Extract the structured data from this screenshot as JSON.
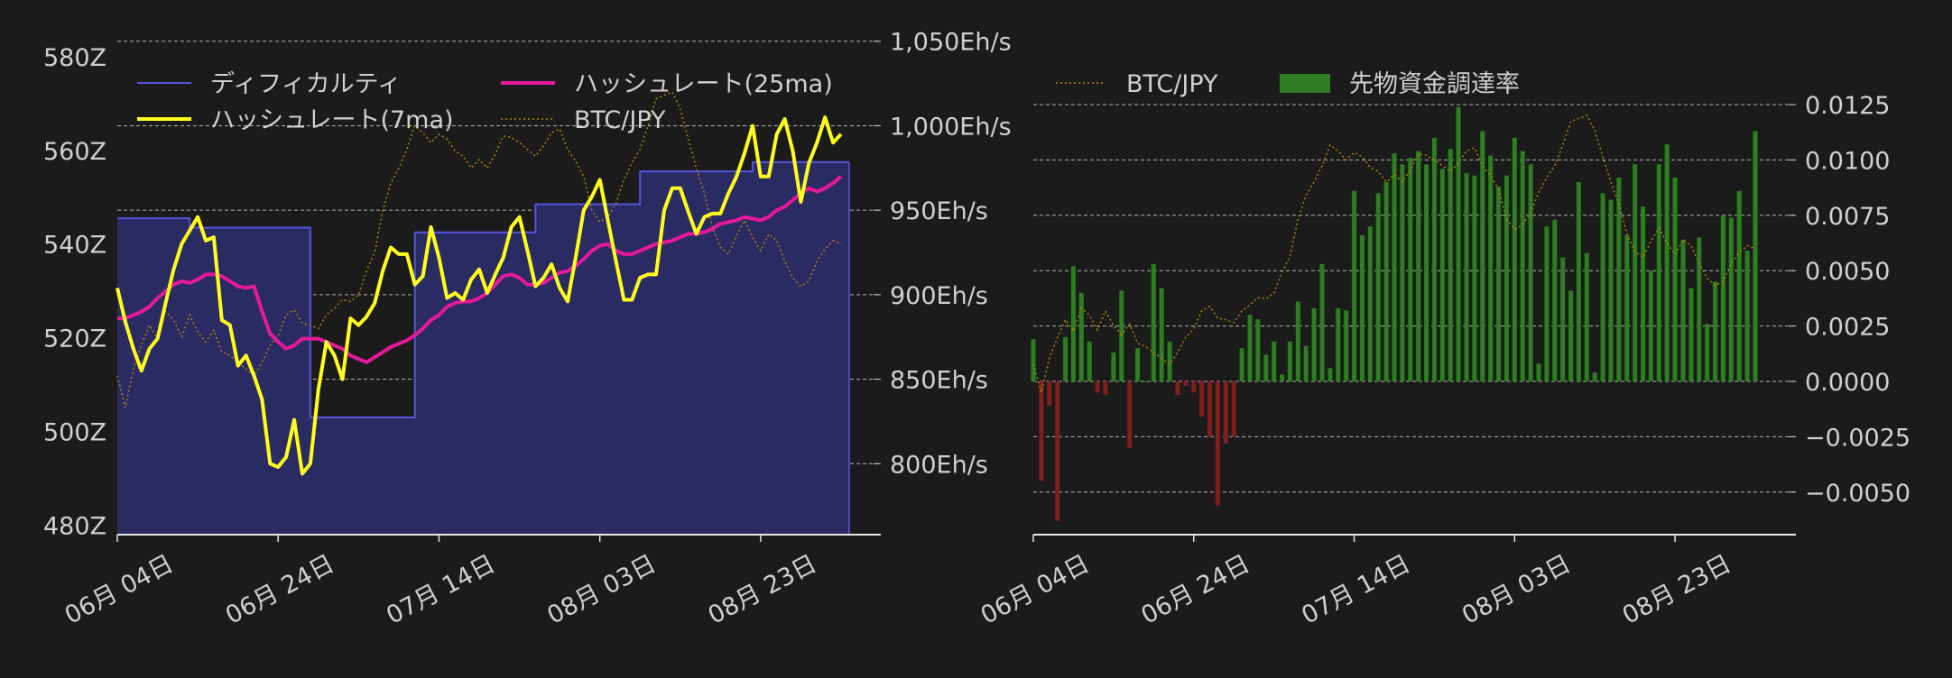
{
  "colors": {
    "background": "#1b1b1b",
    "difficulty_line": "#5555dd",
    "difficulty_fill": "#2b2b63",
    "hashrate_7ma": "#ffff1e",
    "hashrate_25ma": "#e6199b",
    "btc_jpy": "#b5860e",
    "positive_bar": "#2e7d22",
    "negative_bar": "#7f1f1f",
    "text": "#d0d0d0",
    "grid": "#cfcfcf"
  },
  "chart_data": [
    {
      "type": "line",
      "x_tick_labels": [
        "06月 04日",
        "06月 24日",
        "07月 14日",
        "08月 03日",
        "08月 23日"
      ],
      "x_tick_days": [
        0,
        20,
        40,
        60,
        80
      ],
      "day_count": 91,
      "left_axis": {
        "ticks": [
          "580Z",
          "560Z",
          "540Z",
          "520Z",
          "500Z",
          "480Z"
        ],
        "tick_values": [
          580,
          560,
          540,
          520,
          500,
          480
        ],
        "range": [
          478,
          584
        ]
      },
      "right_axis": {
        "ticks": [
          "1,050Eh/s",
          "1,000Eh/s",
          "950Eh/s",
          "900Eh/s",
          "850Eh/s",
          "800Eh/s"
        ],
        "tick_values": [
          1050,
          1000,
          950,
          900,
          850,
          800
        ],
        "range": [
          758,
          1052
        ]
      },
      "grid": true,
      "legend": {
        "position": "top-left",
        "items": [
          "ディフィカルティ",
          "ハッシュレート(25ma)",
          "ハッシュレート(7ma)",
          "BTC/JPY"
        ]
      },
      "series": [
        {
          "name": "ディフィカルティ",
          "axis": "left",
          "style": "step-area",
          "steps": [
            {
              "from_day": 0,
              "to_day": 9,
              "value": 545.5
            },
            {
              "from_day": 9,
              "to_day": 24,
              "value": 543.5
            },
            {
              "from_day": 24,
              "to_day": 37,
              "value": 503
            },
            {
              "from_day": 37,
              "to_day": 52,
              "value": 542.5
            },
            {
              "from_day": 52,
              "to_day": 65,
              "value": 548.5
            },
            {
              "from_day": 65,
              "to_day": 79,
              "value": 555.5
            },
            {
              "from_day": 79,
              "to_day": 91,
              "value": 557.5
            }
          ]
        },
        {
          "name": "ハッシュレート(7ma)",
          "axis": "right",
          "values": [
            904,
            884,
            868,
            855,
            868,
            874,
            895,
            915,
            930,
            938,
            946,
            932,
            934,
            885,
            882,
            858,
            864,
            852,
            838,
            800,
            798,
            804,
            826,
            794,
            800,
            844,
            872,
            864,
            850,
            886,
            882,
            887,
            895,
            914,
            928,
            924,
            924,
            906,
            911,
            940,
            922,
            898,
            901,
            897,
            909,
            915,
            901,
            912,
            922,
            940,
            946,
            926,
            905,
            910,
            918,
            904,
            896,
            922,
            950,
            958,
            968,
            944,
            920,
            897,
            897,
            910,
            912,
            912,
            950,
            963,
            963,
            949,
            936,
            946,
            948,
            948,
            960,
            970,
            984,
            1000,
            970,
            970,
            995,
            1004,
            985,
            955,
            978,
            990,
            1005,
            990,
            995
          ]
        },
        {
          "name": "ハッシュレート(25ma)",
          "axis": "right",
          "values": [
            886,
            886,
            888,
            890,
            893,
            898,
            902,
            906,
            908,
            907,
            909,
            912,
            912,
            911,
            908,
            905,
            904,
            905,
            890,
            877,
            872,
            868,
            870,
            874,
            874,
            874,
            872,
            870,
            868,
            864,
            862,
            860,
            863,
            866,
            869,
            871,
            873,
            876,
            880,
            885,
            888,
            893,
            895,
            896,
            896,
            898,
            901,
            906,
            911,
            912,
            910,
            906,
            906,
            907,
            910,
            913,
            914,
            917,
            921,
            926,
            929,
            930,
            926,
            924,
            924,
            926,
            928,
            930,
            931,
            932,
            934,
            936,
            936,
            937,
            939,
            942,
            943,
            944,
            946,
            945,
            944,
            946,
            950,
            952,
            956,
            960,
            963,
            961,
            963,
            966,
            970
          ]
        },
        {
          "name": "BTC/JPY",
          "axis": "right",
          "style": "dotted",
          "values": [
            852,
            833,
            856,
            870,
            882,
            874,
            890,
            885,
            875,
            888,
            878,
            872,
            879,
            866,
            864,
            860,
            856,
            852,
            860,
            870,
            876,
            888,
            891,
            883,
            882,
            880,
            888,
            892,
            897,
            896,
            900,
            914,
            925,
            950,
            966,
            975,
            986,
            1000,
            996,
            990,
            995,
            992,
            985,
            982,
            975,
            980,
            975,
            983,
            994,
            993,
            990,
            986,
            982,
            988,
            996,
            998,
            986,
            979,
            970,
            950,
            943,
            946,
            954,
            968,
            978,
            986,
            1000,
            1016,
            1018,
            1020,
            1010,
            992,
            975,
            960,
            940,
            928,
            924,
            935,
            944,
            934,
            926,
            936,
            932,
            920,
            910,
            905,
            908,
            920,
            927,
            932,
            930
          ]
        }
      ]
    },
    {
      "type": "bar",
      "x_tick_labels": [
        "06月 04日",
        "06月 24日",
        "07月 14日",
        "08月 03日",
        "08月 23日"
      ],
      "x_tick_days": [
        0,
        20,
        40,
        60,
        80
      ],
      "day_count": 91,
      "right_axis": {
        "ticks": [
          "0.0125",
          "0.0100",
          "0.0075",
          "0.0050",
          "0.0025",
          "0.0000",
          "−0.0025",
          "−0.0050"
        ],
        "tick_values": [
          0.0125,
          0.01,
          0.0075,
          0.005,
          0.0025,
          0.0,
          -0.0025,
          -0.005
        ],
        "range": [
          -0.007,
          0.0138
        ]
      },
      "grid": true,
      "legend": {
        "position": "top-left",
        "items": [
          "BTC/JPY",
          "先物資金調達率"
        ]
      },
      "series": [
        {
          "name": "先物資金調達率",
          "values": [
            0.0019,
            -0.0045,
            -0.0011,
            -0.0063,
            0.002,
            0.0052,
            0.004,
            0.0018,
            -0.0005,
            -0.0006,
            0.0013,
            0.0041,
            -0.003,
            0.0015,
            0.0,
            0.0053,
            0.0042,
            0.0018,
            -0.0006,
            -0.0002,
            -0.0005,
            -0.0016,
            -0.0025,
            -0.0056,
            -0.0028,
            -0.0025,
            0.0015,
            0.003,
            0.0028,
            0.0012,
            0.0018,
            0.0003,
            0.0018,
            0.0036,
            0.0016,
            0.0033,
            0.0053,
            0.0006,
            0.0033,
            0.0032,
            0.0086,
            0.0066,
            0.007,
            0.0085,
            0.009,
            0.0103,
            0.0098,
            0.0101,
            0.0104,
            0.0098,
            0.011,
            0.0096,
            0.0105,
            0.0124,
            0.0094,
            0.0093,
            0.0113,
            0.0102,
            0.0088,
            0.0093,
            0.011,
            0.0104,
            0.0098,
            0.0008,
            0.007,
            0.0073,
            0.0056,
            0.0041,
            0.009,
            0.0058,
            0.0004,
            0.0085,
            0.0082,
            0.0092,
            0.0066,
            0.0098,
            0.0079,
            0.005,
            0.0098,
            0.0107,
            0.0092,
            0.0064,
            0.0042,
            0.0065,
            0.0026,
            0.0045,
            0.0075,
            0.0074,
            0.0086,
            0.0059,
            0.0113
          ]
        },
        {
          "name": "BTC/JPY",
          "axis": "hidden",
          "style": "dotted",
          "values": [
            852,
            833,
            856,
            870,
            882,
            874,
            890,
            885,
            875,
            888,
            878,
            872,
            879,
            866,
            864,
            860,
            856,
            852,
            860,
            870,
            876,
            888,
            891,
            883,
            882,
            880,
            888,
            892,
            897,
            896,
            900,
            914,
            925,
            950,
            966,
            975,
            986,
            1000,
            996,
            990,
            995,
            992,
            985,
            982,
            975,
            980,
            975,
            983,
            994,
            993,
            990,
            986,
            982,
            988,
            996,
            998,
            986,
            979,
            970,
            950,
            943,
            946,
            954,
            968,
            978,
            986,
            1000,
            1016,
            1018,
            1020,
            1010,
            992,
            975,
            960,
            940,
            928,
            924,
            935,
            944,
            934,
            926,
            936,
            932,
            920,
            910,
            905,
            908,
            920,
            927,
            932,
            930
          ]
        }
      ]
    }
  ]
}
